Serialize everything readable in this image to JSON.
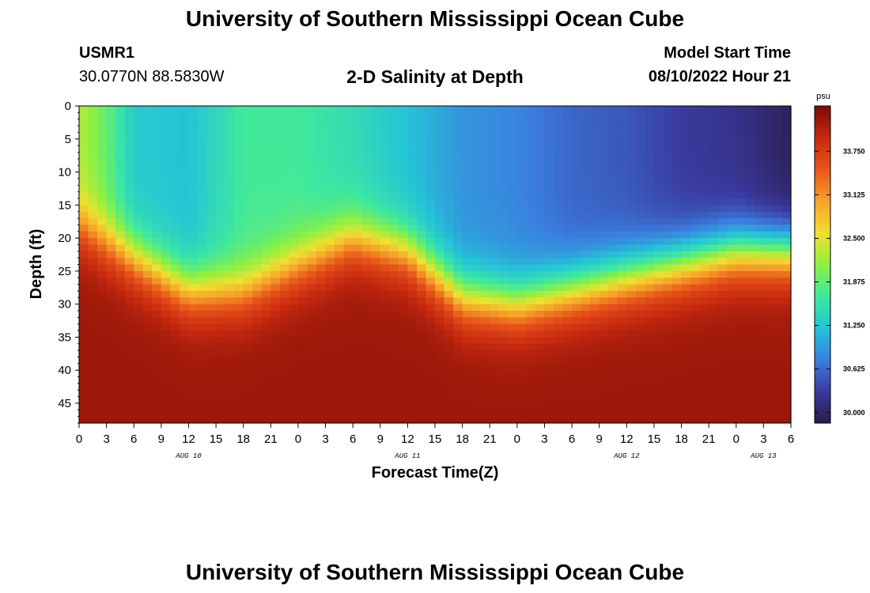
{
  "header": {
    "title": "University of Southern Mississippi Ocean Cube",
    "station": "USMR1",
    "coords": "30.0770N  88.5830W",
    "subtitle": "2-D Salinity at Depth",
    "start_label": "Model Start Time",
    "start_value": "08/10/2022 Hour 21"
  },
  "footer": {
    "title": "University of Southern Mississippi Ocean Cube"
  },
  "chart_data": {
    "type": "heatmap",
    "title": "2-D Salinity at Depth",
    "xlabel": "Forecast Time(Z)",
    "ylabel": "Depth (ft)",
    "x_tick_labels": [
      "0",
      "3",
      "6",
      "9",
      "12",
      "15",
      "18",
      "21",
      "0",
      "3",
      "6",
      "9",
      "12",
      "15",
      "18",
      "21",
      "0",
      "3",
      "6",
      "9",
      "12",
      "15",
      "18",
      "21",
      "0",
      "3",
      "6"
    ],
    "x_range_hours": [
      0,
      78
    ],
    "date_labels": [
      {
        "label": "AUG 10",
        "hour": 12
      },
      {
        "label": "AUG 11",
        "hour": 36
      },
      {
        "label": "AUG 12",
        "hour": 60
      },
      {
        "label": "AUG 13",
        "hour": 75
      }
    ],
    "y_ticks": [
      0,
      5,
      10,
      15,
      20,
      25,
      30,
      35,
      40,
      45
    ],
    "y_range_ft": [
      0,
      48
    ],
    "colorbar": {
      "unit": "psu",
      "range": [
        29.85,
        34.4
      ],
      "ticks": [
        "33.750",
        "33.125",
        "32.500",
        "31.875",
        "31.250",
        "30.625",
        "30.000"
      ],
      "colors": [
        "#2a1a4a",
        "#3a3a9e",
        "#3a7fe0",
        "#24c5d6",
        "#3de8a0",
        "#8ef040",
        "#f0e030",
        "#f7a22a",
        "#e8551a",
        "#c82a10",
        "#7a0a05"
      ]
    },
    "halocline_depth_ft": {
      "hours": [
        0,
        6,
        12,
        18,
        24,
        30,
        36,
        42,
        48,
        54,
        60,
        66,
        72,
        78
      ],
      "depth": [
        18,
        23,
        28,
        28,
        24,
        20,
        22,
        29,
        30,
        28,
        26,
        24,
        22,
        22
      ]
    },
    "surface_salinity_psu": {
      "hours": [
        0,
        3,
        6,
        12,
        18,
        24,
        30,
        36,
        42,
        48,
        54,
        60,
        66,
        72,
        78
      ],
      "values": [
        32.3,
        31.9,
        31.3,
        31.2,
        31.7,
        31.7,
        31.5,
        31.2,
        30.9,
        30.8,
        30.6,
        30.5,
        30.3,
        30.2,
        29.95
      ]
    },
    "bottom_salinity_psu": 34.2
  }
}
